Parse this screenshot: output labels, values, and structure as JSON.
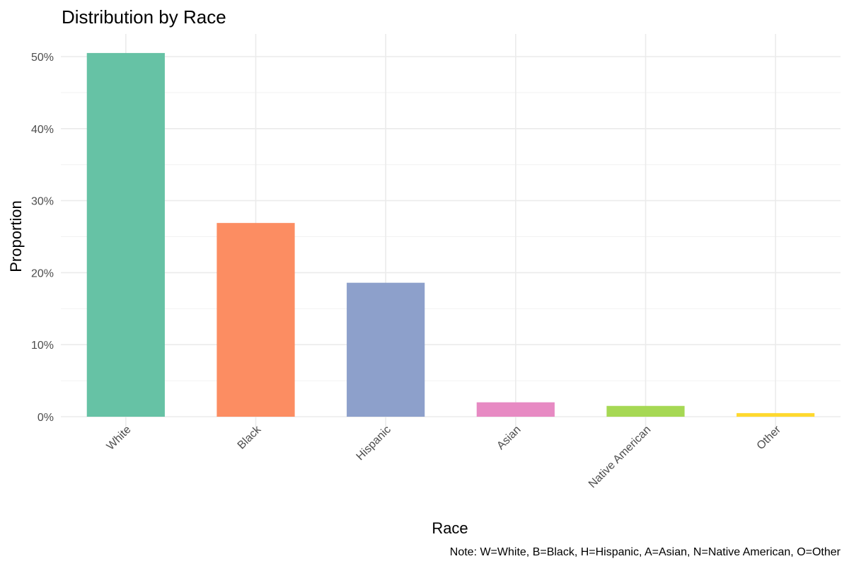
{
  "chart_data": {
    "type": "bar",
    "title": "Distribution by Race",
    "xlabel": "Race",
    "ylabel": "Proportion",
    "categories": [
      "White",
      "Black",
      "Hispanic",
      "Asian",
      "Native American",
      "Other"
    ],
    "values": [
      0.505,
      0.269,
      0.186,
      0.02,
      0.015,
      0.005
    ],
    "colors": [
      "#66c2a5",
      "#fc8d62",
      "#8da0cb",
      "#e78ac3",
      "#a6d854",
      "#ffd92f"
    ],
    "ylim": [
      0,
      0.52
    ],
    "yticks": [
      0,
      0.1,
      0.2,
      0.3,
      0.4,
      0.5
    ],
    "ytick_labels": [
      "0%",
      "10%",
      "20%",
      "30%",
      "40%",
      "50%"
    ],
    "grid": true,
    "legend": "none",
    "caption": "Note: W=White, B=Black, H=Hispanic, A=Asian, N=Native American, O=Other"
  }
}
